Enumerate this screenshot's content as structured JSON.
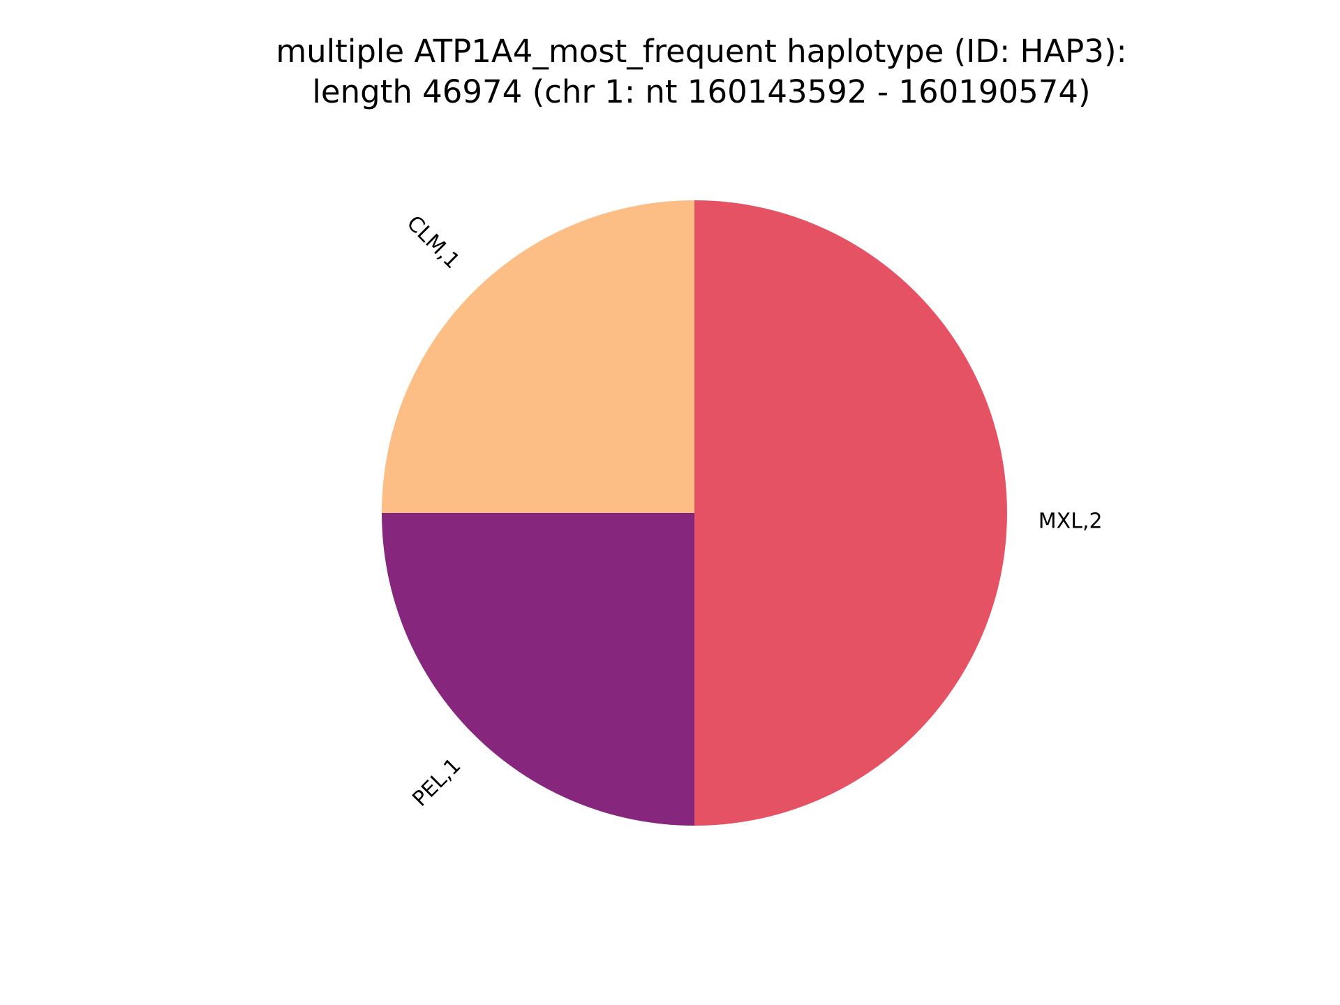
{
  "chart_data": {
    "type": "pie",
    "title": "multiple ATP1A4_most_frequent haplotype (ID: HAP3):",
    "subtitle": "length 46974 (chr 1: nt 160143592 - 160190574)",
    "slices": [
      {
        "label": "CLM,1",
        "value": 1,
        "color": "#fdbe85"
      },
      {
        "label": "PEL,1",
        "value": 1,
        "color": "#86277d"
      },
      {
        "label": "MXL,2",
        "value": 2,
        "color": "#e55264"
      }
    ],
    "start_angle_deg": 90,
    "direction": "counterclockwise",
    "legend": "none"
  }
}
